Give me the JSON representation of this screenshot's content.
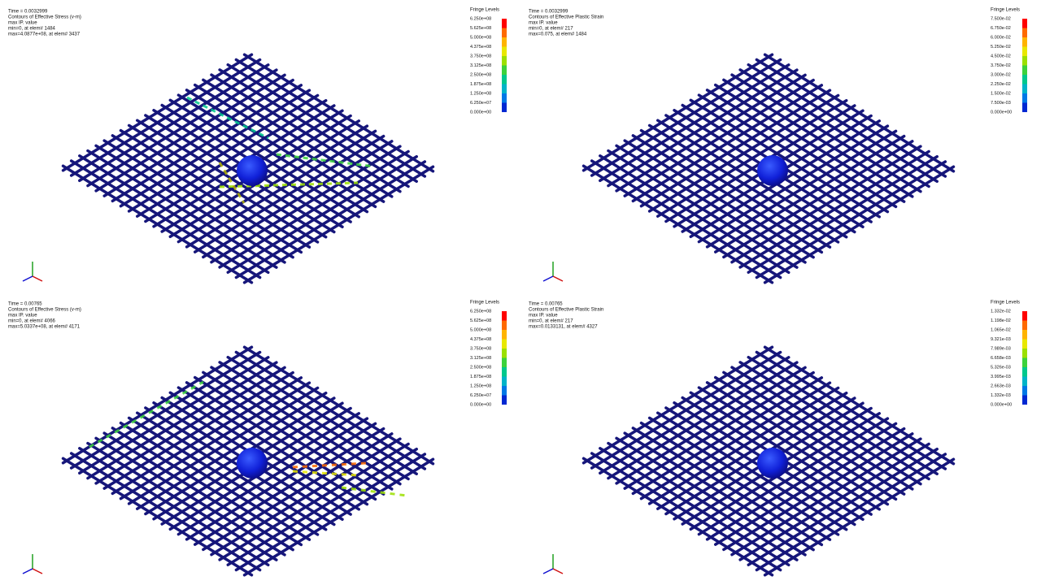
{
  "panels": [
    {
      "header": [
        "Time = 0.0032999",
        "Contours of Effective Stress (v-m)",
        "max IP. value",
        "min=0, at elem# 1484",
        "max=4.0877e+08, at elem# 3437"
      ],
      "legend": {
        "title": "Fringe Levels",
        "levels": [
          "6.250e+08",
          "5.625e+08",
          "5.000e+08",
          "4.375e+08",
          "3.750e+08",
          "3.125e+08",
          "2.500e+08",
          "1.875e+08",
          "1.250e+08",
          "6.250e+07",
          "0.000e+00"
        ]
      }
    },
    {
      "header": [
        "Time = 0.0032999",
        "Contours of Effective Plastic Strain",
        "max IP. value",
        "min=0, at elem# 217",
        "max=0.075, at elem# 1484"
      ],
      "legend": {
        "title": "Fringe Levels",
        "levels": [
          "7.500e-02",
          "6.750e-02",
          "6.000e-02",
          "5.250e-02",
          "4.500e-02",
          "3.750e-02",
          "3.000e-02",
          "2.250e-02",
          "1.500e-02",
          "7.500e-03",
          "0.000e+00"
        ]
      }
    },
    {
      "header": [
        "Time = 0.00765",
        "Contours of Effective Stress (v-m)",
        "max IP. value",
        "min=0, at elem# 4066",
        "max=5.0337e+08, at elem# 4171"
      ],
      "legend": {
        "title": "Fringe Levels",
        "levels": [
          "6.250e+08",
          "5.625e+08",
          "5.000e+08",
          "4.375e+08",
          "3.750e+08",
          "3.125e+08",
          "2.500e+08",
          "1.875e+08",
          "1.250e+08",
          "6.250e+07",
          "0.000e+00"
        ]
      }
    },
    {
      "header": [
        "Time = 0.00765",
        "Contours of Effective Plastic Strain",
        "max IP. value",
        "min=0, at elem# 217",
        "max=0.0133131, at elem# 4327"
      ],
      "legend": {
        "title": "Fringe Levels",
        "levels": [
          "1.332e-02",
          "1.198e-02",
          "1.065e-02",
          "9.321e-03",
          "7.989e-03",
          "6.658e-03",
          "5.326e-03",
          "3.995e-03",
          "2.663e-03",
          "1.332e-03",
          "0.000e+00"
        ]
      }
    }
  ]
}
